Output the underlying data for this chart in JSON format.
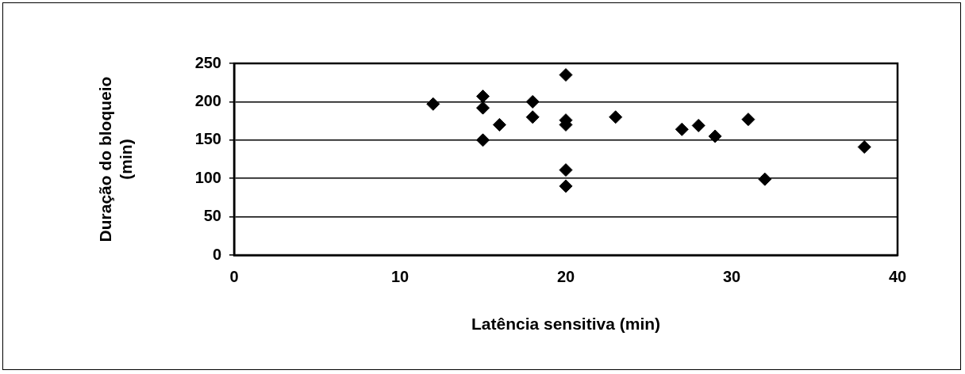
{
  "chart_data": {
    "type": "scatter",
    "xlabel": "Latência sensitiva (min)",
    "ylabel": "Duração do bloqueio (min)",
    "x": [
      12,
      15,
      15,
      15,
      16,
      18,
      18,
      20,
      20,
      20,
      20,
      20,
      23,
      27,
      28,
      29,
      31,
      32,
      38
    ],
    "series": [
      {
        "color": "#000000",
        "values": [
          197,
          207,
          192,
          150,
          170,
          200,
          180,
          235,
          176,
          170,
          111,
          90,
          180,
          164,
          169,
          155,
          177,
          99,
          141
        ]
      }
    ],
    "xlim": [
      0,
      40
    ],
    "xticks": [
      0,
      10,
      20,
      30,
      40
    ],
    "ylim": [
      0,
      250
    ],
    "yticks": [
      0,
      50,
      100,
      150,
      200,
      250
    ],
    "grid": "y",
    "legend": false,
    "marker": "diamond"
  }
}
